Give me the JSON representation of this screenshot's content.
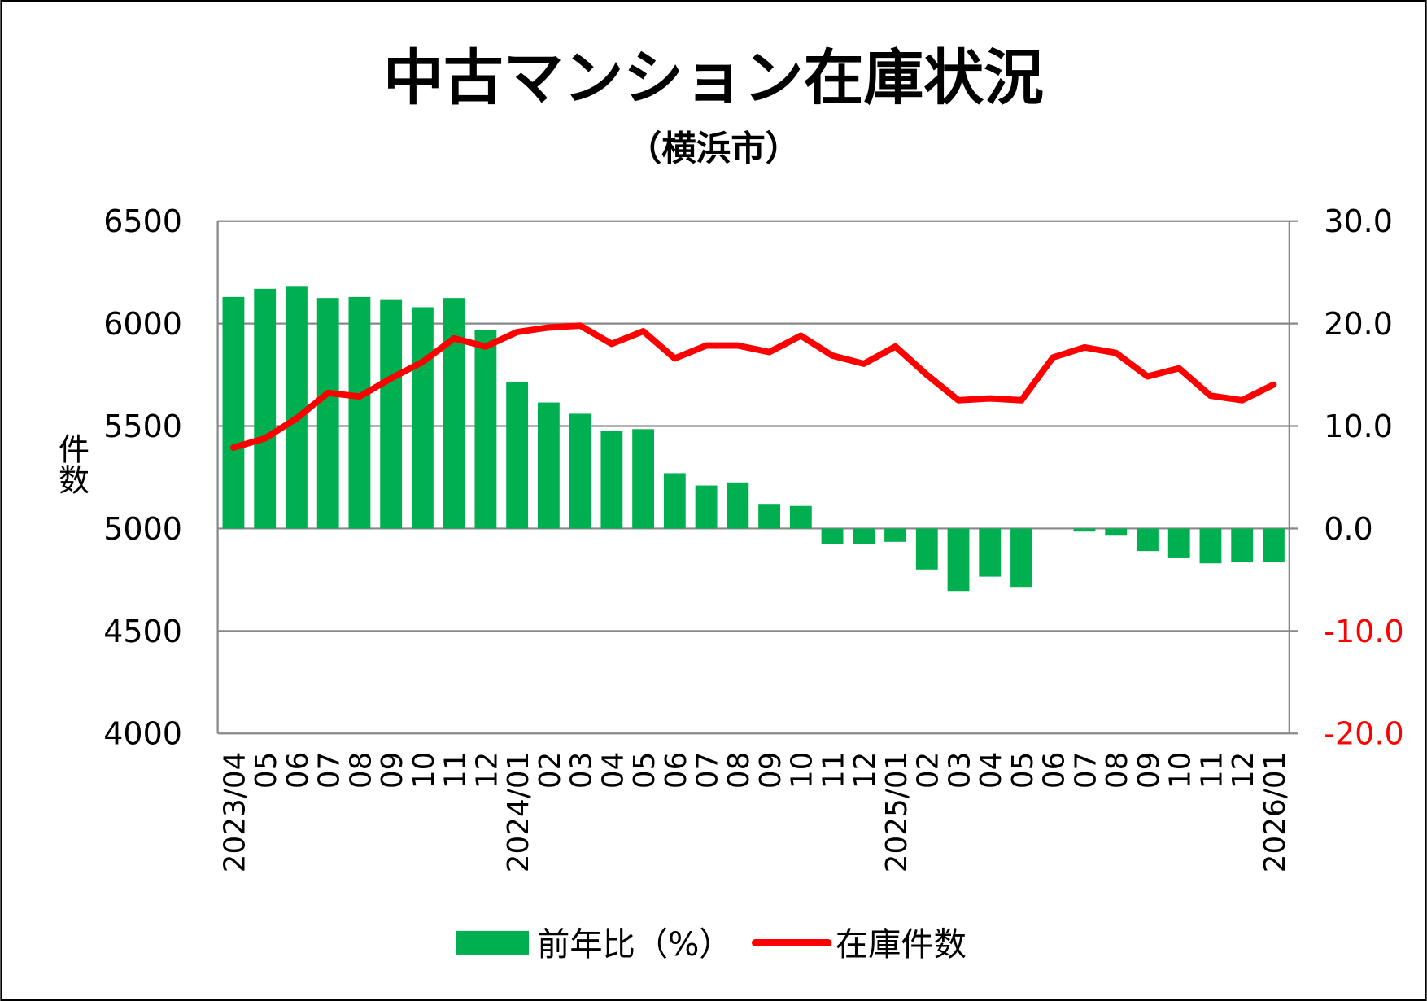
{
  "chart_data": {
    "type": "bar+line",
    "title": "中古マンション在庫状況",
    "subtitle": "（横浜市）",
    "ylabel_left": "件数",
    "ylim_left": [
      4000,
      6500
    ],
    "yticks_left": [
      "6500",
      "6000",
      "5500",
      "5000",
      "4500",
      "4000"
    ],
    "ylim_right": [
      -20,
      30
    ],
    "yticks_right": [
      "30.0",
      "20.0",
      "10.0",
      "0.0",
      "-10.0",
      "-20.0"
    ],
    "grid": true,
    "legend_position": "bottom",
    "categories": [
      "2023/04",
      "05",
      "06",
      "07",
      "08",
      "09",
      "10",
      "11",
      "12",
      "2024/01",
      "02",
      "03",
      "04",
      "05",
      "06",
      "07",
      "08",
      "09",
      "10",
      "11",
      "12",
      "2025/01",
      "02",
      "03",
      "04",
      "05",
      "06",
      "07",
      "08",
      "09",
      "10",
      "11",
      "12",
      "2026/01"
    ],
    "series": [
      {
        "name": "前年比（%）",
        "type": "bar",
        "axis": "right",
        "color": "#00b050",
        "values": [
          22.6,
          23.4,
          23.6,
          22.5,
          22.6,
          22.3,
          21.6,
          22.5,
          19.4,
          14.3,
          12.3,
          11.2,
          9.5,
          9.7,
          5.4,
          4.2,
          4.5,
          2.4,
          2.2,
          -1.5,
          -1.5,
          -1.3,
          -4.0,
          -6.1,
          -4.7,
          -5.7,
          0.0,
          -0.3,
          -0.7,
          -2.2,
          -2.9,
          -3.4,
          -3.3,
          -3.3
        ]
      },
      {
        "name": "在庫件数",
        "type": "line",
        "axis": "left",
        "color": "#ff0000",
        "values": [
          5395,
          5440,
          5537,
          5662,
          5644,
          5733,
          5813,
          5928,
          5888,
          5959,
          5981,
          5990,
          5901,
          5963,
          5830,
          5893,
          5893,
          5861,
          5941,
          5844,
          5804,
          5888,
          5750,
          5626,
          5635,
          5626,
          5835,
          5884,
          5857,
          5742,
          5782,
          5648,
          5626,
          5702
        ]
      }
    ],
    "negative_tick_color": "#ff0000"
  }
}
